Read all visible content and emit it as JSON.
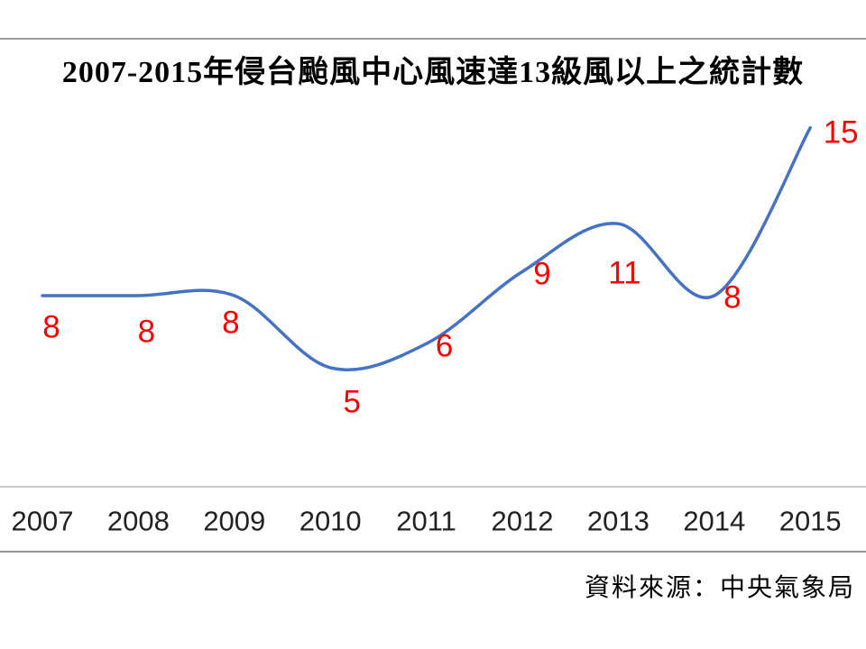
{
  "chart_data": {
    "type": "line",
    "title": "2007-2015年侵台颱風中心風速達13級風以上之統計數",
    "categories": [
      "2007",
      "2008",
      "2009",
      "2010",
      "2011",
      "2012",
      "2013",
      "2014",
      "2015"
    ],
    "values": [
      8,
      8,
      8,
      5,
      6,
      9,
      11,
      8,
      15
    ],
    "data_labels": [
      "8",
      "8",
      "8",
      "5",
      "6",
      "9",
      "11",
      "8",
      "15"
    ],
    "smooth": true,
    "legend": "none",
    "gridlines": false,
    "y_axis": "hidden",
    "ylim": [
      0,
      18.7
    ],
    "line_color": "#4472C4",
    "label_color": "#FF0000",
    "axis_label_color": "#222222",
    "source_note": "資料來源：中央氣象局"
  }
}
